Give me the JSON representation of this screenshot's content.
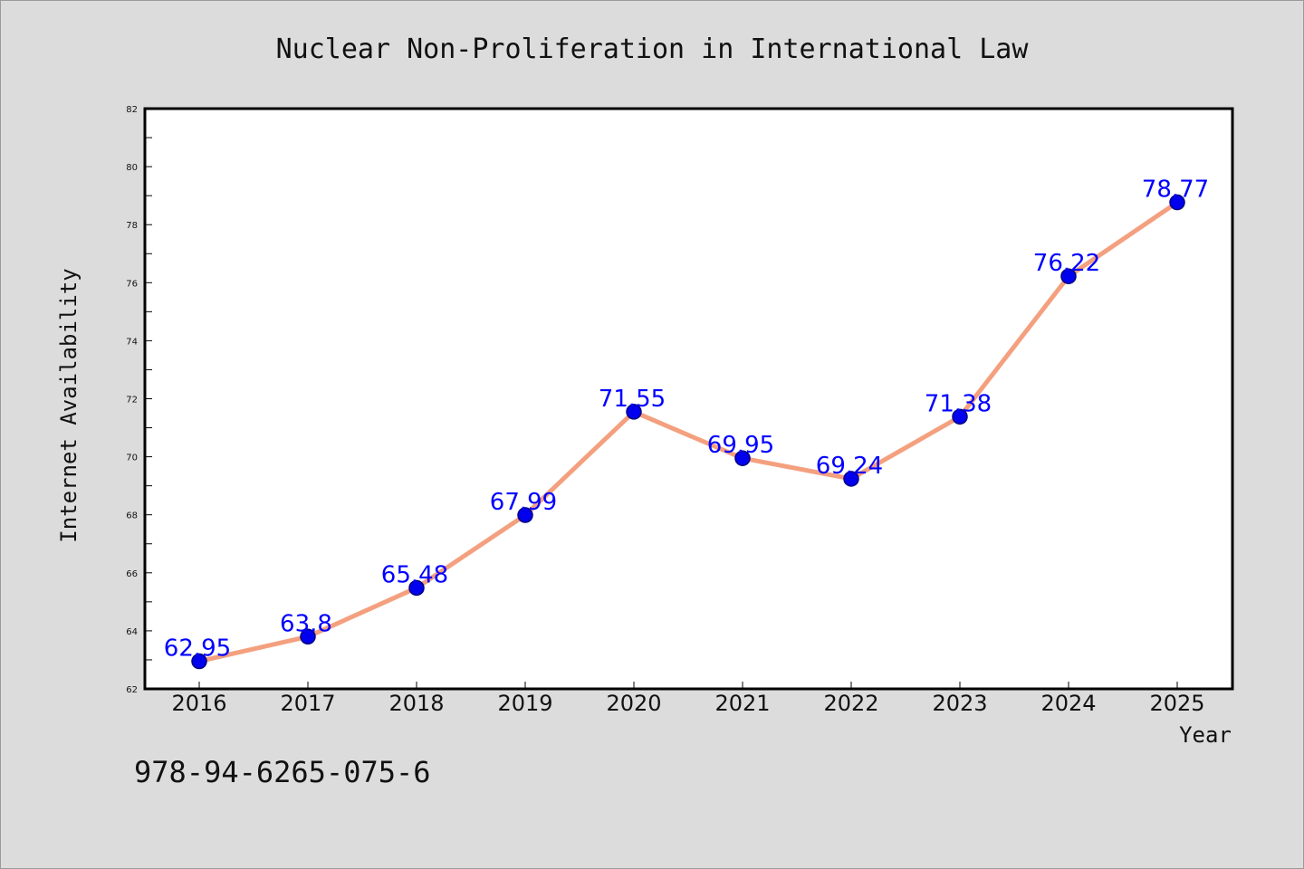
{
  "chart_data": {
    "type": "line",
    "title": "Nuclear Non-Proliferation in International Law",
    "xlabel": "Year",
    "ylabel": "Internet Availability",
    "categories": [
      "2016",
      "2017",
      "2018",
      "2019",
      "2020",
      "2021",
      "2022",
      "2023",
      "2024",
      "2025"
    ],
    "values": [
      62.95,
      63.8,
      65.48,
      67.99,
      71.55,
      69.95,
      69.24,
      71.38,
      76.22,
      78.77
    ],
    "data_labels": [
      "62.95",
      "63.8",
      "65.48",
      "67.99",
      "71.55",
      "69.95",
      "69.24",
      "71.38",
      "76.22",
      "78.77"
    ],
    "ylim": [
      62,
      82
    ],
    "yticks": [
      "62",
      "64",
      "66",
      "68",
      "70",
      "72",
      "74",
      "76",
      "78",
      "80",
      "82"
    ],
    "grid": false,
    "colors": {
      "line": "#f4a07f",
      "marker_fill": "#0000ee",
      "marker_edge": "#000080",
      "data_label": "#0000ff",
      "plot_background": "#ffffff",
      "page_background": "#dcdcdc"
    }
  },
  "footer": {
    "code": "978-94-6265-075-6"
  }
}
